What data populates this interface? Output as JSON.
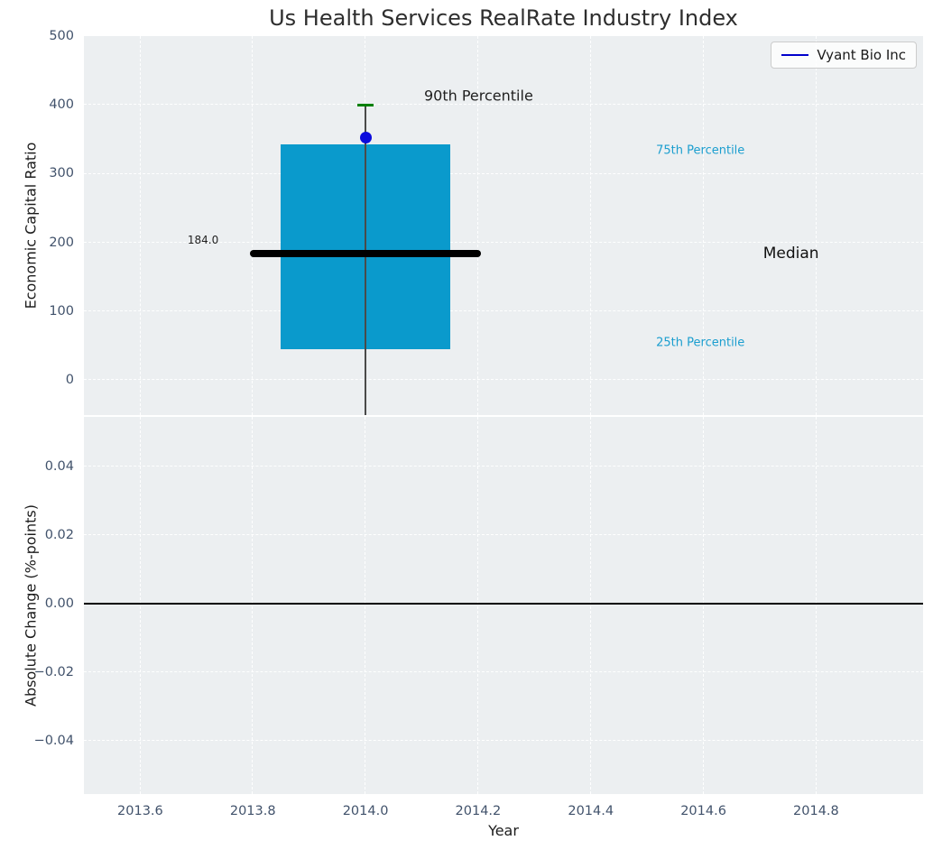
{
  "chart_data": [
    {
      "type": "boxplot",
      "title": "Us Health Services RealRate Industry Index",
      "ylabel": "Economic Capital Ratio",
      "xlabel": "Year",
      "xlim": [
        2013.5,
        2014.99
      ],
      "ylim": [
        -51,
        500
      ],
      "background": "#eceff1",
      "grid": {
        "style": "dashed",
        "color": "#ffffff"
      },
      "x_ticks": [
        {
          "v": 2013.6,
          "label": "2013.6"
        },
        {
          "v": 2013.8,
          "label": "2013.8"
        },
        {
          "v": 2014.0,
          "label": "2014.0"
        },
        {
          "v": 2014.2,
          "label": "2014.2"
        },
        {
          "v": 2014.4,
          "label": "2014.4"
        },
        {
          "v": 2014.6,
          "label": "2014.6"
        },
        {
          "v": 2014.8,
          "label": "2014.8"
        }
      ],
      "y_ticks": [
        {
          "v": 0,
          "label": "0"
        },
        {
          "v": 100,
          "label": "100"
        },
        {
          "v": 200,
          "label": "200"
        },
        {
          "v": 300,
          "label": "300"
        },
        {
          "v": 400,
          "label": "400"
        },
        {
          "v": 500,
          "label": "500"
        }
      ],
      "legend": {
        "label": "Vyant Bio Inc",
        "line_color": "#0000cc"
      },
      "box": {
        "x": 2014.0,
        "box_left": 2013.85,
        "box_right": 2014.15,
        "q25": 45,
        "median": 184.0,
        "q75": 342,
        "p90": 400,
        "whisker_bottom_clipped": true,
        "median_line_left": 2013.795,
        "median_line_right": 2014.205,
        "box_color": "#0a9acc",
        "median_color": "#000000",
        "p90_cap_color": "#008000",
        "whisker_color": "#4a4a4a"
      },
      "point": {
        "series": "Vyant Bio Inc",
        "x": 2014.0,
        "y": 352,
        "color": "#0b0bdc"
      },
      "annotations": [
        {
          "text": "90th Percentile",
          "x": 2014.104,
          "y": 413,
          "color": "#1f1f1f",
          "size": 16
        },
        {
          "text": "75th Percentile",
          "x": 2014.516,
          "y": 333,
          "color": "#1b9ecf",
          "size": 13
        },
        {
          "text": "Median",
          "x": 2014.706,
          "y": 184,
          "color": "#111111",
          "size": 17
        },
        {
          "text": "25th Percentile",
          "x": 2014.516,
          "y": 54,
          "color": "#1b9ecf",
          "size": 13
        },
        {
          "text": "184.0",
          "x": 2013.684,
          "y": 203,
          "color": "#1f1f1f",
          "size": 12
        }
      ]
    },
    {
      "type": "line",
      "ylabel": "Absolute Change (%-points)",
      "xlabel": "Year",
      "xlim": [
        2013.5,
        2014.99
      ],
      "ylim": [
        -0.0555,
        0.0545
      ],
      "y_ticks": [
        {
          "v": 0.04,
          "label": "0.04"
        },
        {
          "v": 0.02,
          "label": "0.02"
        },
        {
          "v": 0,
          "label": "0.00"
        },
        {
          "v": -0.02,
          "label": "−0.02"
        },
        {
          "v": -0.04,
          "label": "−0.04"
        }
      ],
      "zero_line": {
        "y": 0.0,
        "color": "#000000"
      },
      "series": []
    }
  ]
}
